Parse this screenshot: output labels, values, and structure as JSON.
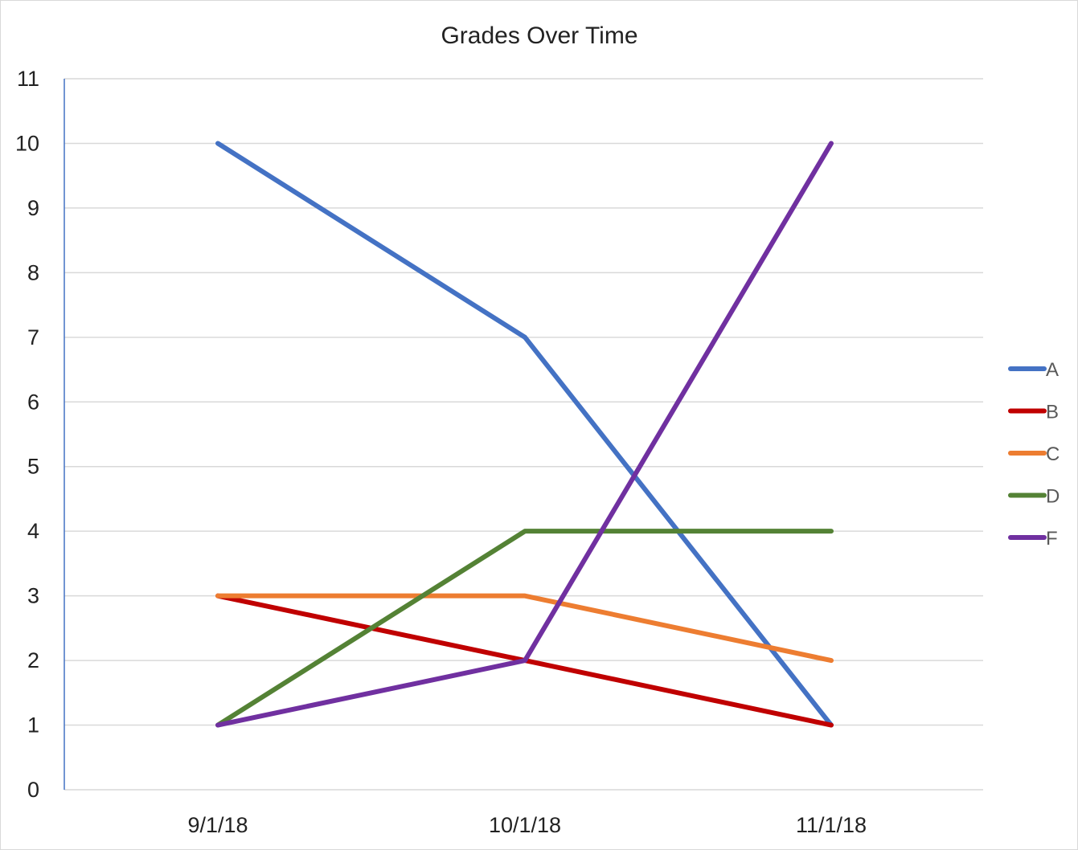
{
  "chart_data": {
    "type": "line",
    "title": "Grades Over Time",
    "xlabel": "",
    "ylabel": "",
    "categories": [
      "9/1/18",
      "10/1/18",
      "11/1/18"
    ],
    "ylim": [
      0,
      11
    ],
    "yticks": [
      "0",
      "1",
      "2",
      "3",
      "4",
      "5",
      "6",
      "7",
      "8",
      "9",
      "10",
      "11"
    ],
    "grid": true,
    "legend_position": "right",
    "series": [
      {
        "name": "A",
        "values": [
          10,
          7,
          1
        ],
        "color": "#4472c4"
      },
      {
        "name": "B",
        "values": [
          3,
          2,
          1
        ],
        "color": "#c00000"
      },
      {
        "name": "C",
        "values": [
          3,
          3,
          2
        ],
        "color": "#ed7d31"
      },
      {
        "name": "D",
        "values": [
          1,
          4,
          4
        ],
        "color": "#548235"
      },
      {
        "name": "F",
        "values": [
          1,
          2,
          10
        ],
        "color": "#7030a0"
      }
    ]
  }
}
